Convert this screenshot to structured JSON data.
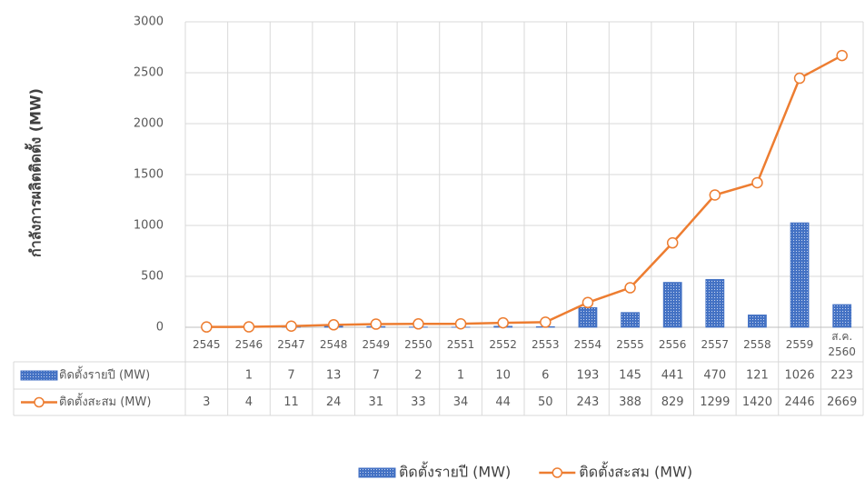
{
  "chart_data": {
    "type": "bar-line",
    "y_label": "กำลังการผลิตติดตั้ง (MW)",
    "categories": [
      "2545",
      "2546",
      "2547",
      "2548",
      "2549",
      "2550",
      "2551",
      "2552",
      "2553",
      "2554",
      "2555",
      "2556",
      "2557",
      "2558",
      "2559",
      "ส.ค. 2560"
    ],
    "series": [
      {
        "name": "ติดตั้งรายปี (MW)",
        "type": "bar",
        "color": "#4472c4",
        "values": [
          null,
          1,
          7,
          13,
          7,
          2,
          1,
          10,
          6,
          193,
          145,
          441,
          470,
          121,
          1026,
          223
        ]
      },
      {
        "name": "ติดตั้งสะสม (MW)",
        "type": "line",
        "color": "#ed7d31",
        "values": [
          3,
          4,
          11,
          24,
          31,
          33,
          34,
          44,
          50,
          243,
          388,
          829,
          1299,
          1420,
          2446,
          2669
        ]
      }
    ],
    "ylim": [
      0,
      3000
    ],
    "yticks": [
      0,
      500,
      1000,
      1500,
      2000,
      2500,
      3000
    ],
    "grid": true
  }
}
